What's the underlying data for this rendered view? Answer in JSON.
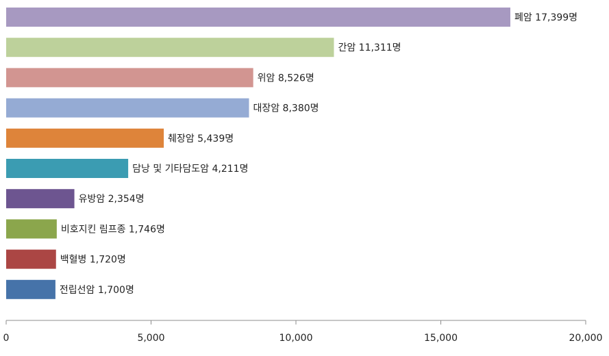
{
  "chart_data": {
    "type": "bar",
    "orientation": "horizontal",
    "title": "",
    "xlabel": "",
    "ylabel": "",
    "xlim": [
      0,
      20000
    ],
    "xticks": [
      0,
      5000,
      10000,
      15000,
      20000
    ],
    "xtick_labels": [
      "0",
      "5,000",
      "10,000",
      "15,000",
      "20,000"
    ],
    "grid": false,
    "bars": [
      {
        "category": "폐암",
        "value": 17399,
        "label": "폐암 17,399명",
        "color": "#a799c1"
      },
      {
        "category": "간암",
        "value": 11311,
        "label": "간암 11,311명",
        "color": "#bdd19b"
      },
      {
        "category": "위암",
        "value": 8526,
        "label": "위암 8,526명",
        "color": "#d29591"
      },
      {
        "category": "대장암",
        "value": 8380,
        "label": "대장암 8,380명",
        "color": "#95abd4"
      },
      {
        "category": "췌장암",
        "value": 5439,
        "label": "췌장암 5,439명",
        "color": "#de843a"
      },
      {
        "category": "담낭 및 기타담도암",
        "value": 4211,
        "label": "담낭 및 기타담도암 4,211명",
        "color": "#3b9cb2"
      },
      {
        "category": "유방암",
        "value": 2354,
        "label": "유방암 2,354명",
        "color": "#6d5590"
      },
      {
        "category": "비호지킨 림프종",
        "value": 1746,
        "label": "비호지킨 림프종 1,746명",
        "color": "#8ba64c"
      },
      {
        "category": "백혈병",
        "value": 1720,
        "label": "백혈병 1,720명",
        "color": "#ab4644"
      },
      {
        "category": "전립선암",
        "value": 1700,
        "label": "전립선암 1,700명",
        "color": "#4673a9"
      }
    ]
  }
}
